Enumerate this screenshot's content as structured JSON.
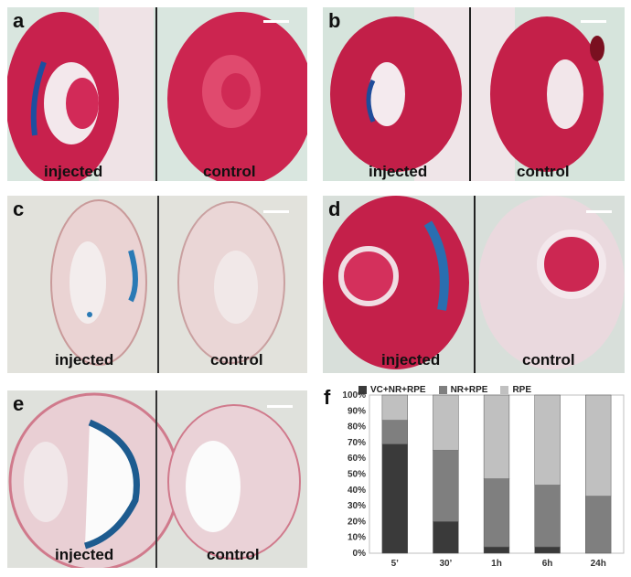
{
  "panels": [
    {
      "letter": "a",
      "left_label": "injected",
      "right_label": "control",
      "stain": "red"
    },
    {
      "letter": "b",
      "left_label": "injected",
      "right_label": "control",
      "stain": "red"
    },
    {
      "letter": "c",
      "left_label": "injected",
      "right_label": "control",
      "stain": "pale"
    },
    {
      "letter": "d",
      "left_label": "injected",
      "right_label": "control",
      "stain": "red"
    },
    {
      "letter": "e",
      "left_label": "injected",
      "right_label": "control",
      "stain": "pale"
    }
  ],
  "chart_label": "f",
  "chart_data": {
    "type": "bar",
    "stacked": true,
    "categories": [
      "5’",
      "30’",
      "1h",
      "6h",
      "24h"
    ],
    "series": [
      {
        "name": "VC+NR+RPE",
        "color": "#3a3a3a",
        "values": [
          69,
          20,
          4,
          4,
          0
        ]
      },
      {
        "name": "NR+RPE",
        "color": "#7f7f7f",
        "values": [
          15,
          45,
          43,
          39,
          36
        ]
      },
      {
        "name": "RPE",
        "color": "#c0c0c0",
        "values": [
          16,
          35,
          53,
          57,
          64
        ]
      }
    ],
    "ylim": [
      0,
      100
    ],
    "yticks": [
      "0%",
      "10%",
      "20%",
      "30%",
      "40%",
      "50%",
      "60%",
      "70%",
      "80%",
      "90%",
      "100%"
    ],
    "legend_position": "top",
    "grid": false
  }
}
